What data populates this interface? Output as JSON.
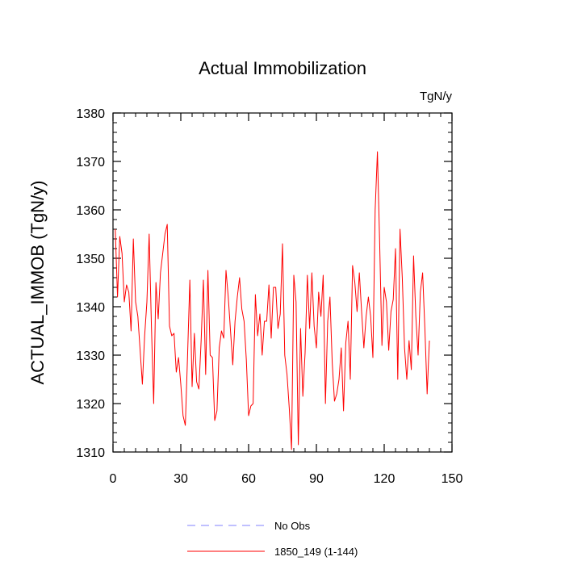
{
  "chart_data": {
    "type": "line",
    "title": "Actual Immobilization",
    "units": "TgN/y",
    "xlabel": "",
    "ylabel": "ACTUAL_IMMOB  (TgN/y)",
    "xlim": [
      0,
      150
    ],
    "ylim": [
      1310,
      1380
    ],
    "x_ticks": [
      0,
      30,
      60,
      90,
      120,
      150
    ],
    "y_ticks": [
      1310,
      1320,
      1330,
      1340,
      1350,
      1360,
      1370,
      1380
    ],
    "x_minor_step": 5,
    "y_minor_step": 2,
    "series": [
      {
        "name": "1850_149 (1-144)",
        "color": "#ff0000",
        "style": "solid",
        "x_start": 1,
        "values": [
          1356,
          1342,
          1354.5,
          1351,
          1341,
          1344.5,
          1343,
          1335,
          1354,
          1341,
          1338,
          1331,
          1324,
          1334,
          1341,
          1355,
          1336,
          1320,
          1345,
          1337.5,
          1347,
          1351,
          1355,
          1357,
          1336,
          1334,
          1334.5,
          1326.5,
          1329.5,
          1324,
          1317.5,
          1315.5,
          1330,
          1345.5,
          1323.5,
          1334.5,
          1324.5,
          1323,
          1333,
          1345.5,
          1326,
          1347.5,
          1330,
          1329.5,
          1316.5,
          1318.5,
          1331.5,
          1335,
          1333.5,
          1347.5,
          1342,
          1335,
          1328,
          1337,
          1342,
          1346,
          1339.5,
          1337,
          1329,
          1317.5,
          1319.5,
          1320,
          1342.5,
          1334,
          1338.5,
          1330,
          1337,
          1337,
          1344.5,
          1333.5,
          1344,
          1344,
          1335.5,
          1338.5,
          1353,
          1330,
          1326,
          1319,
          1310.5,
          1346.5,
          1341,
          1311.5,
          1335.5,
          1321.5,
          1330.5,
          1346.5,
          1335.5,
          1347,
          1336,
          1331.5,
          1343,
          1338,
          1346.5,
          1320,
          1337,
          1342,
          1328.5,
          1320.5,
          1322,
          1325,
          1331.5,
          1318.5,
          1332.5,
          1337,
          1325,
          1348.5,
          1345,
          1339,
          1347,
          1339,
          1331.5,
          1338,
          1342,
          1338,
          1329.5,
          1360,
          1372,
          1353,
          1332,
          1344,
          1341,
          1331,
          1339,
          1341.5,
          1352,
          1325,
          1356,
          1346,
          1331.5,
          1325,
          1333,
          1327,
          1350.5,
          1338,
          1330,
          1343,
          1347,
          1335.5,
          1322,
          1333
        ]
      }
    ],
    "legend": {
      "placement": "bottom",
      "entries": [
        {
          "label": "No Obs",
          "color": "#8080ff",
          "style": "dashed"
        },
        {
          "label": "1850_149 (1-144)",
          "color": "#ff0000",
          "style": "solid"
        }
      ]
    }
  }
}
